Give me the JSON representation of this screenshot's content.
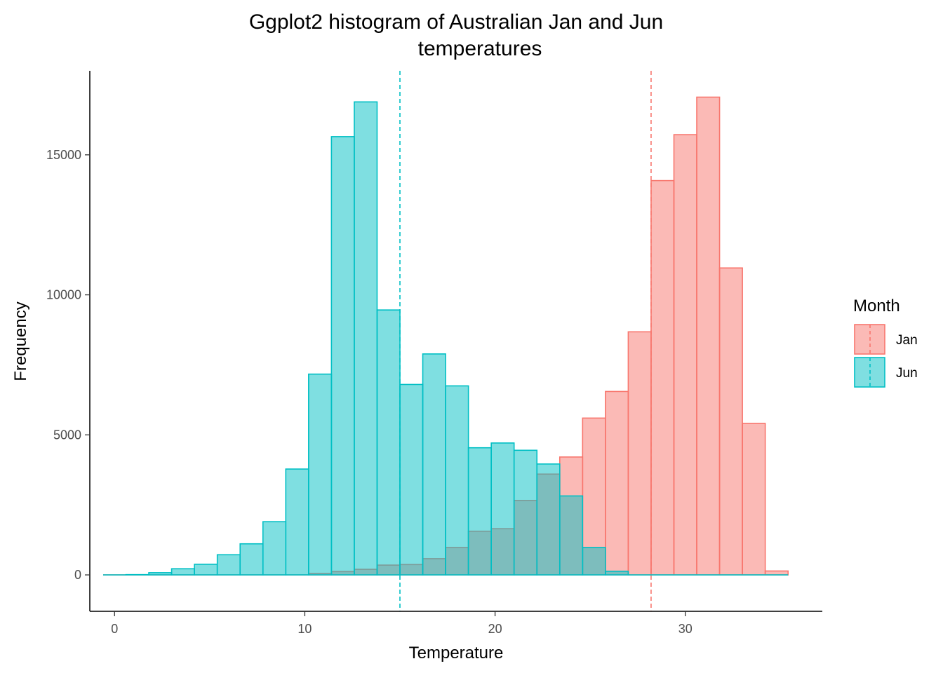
{
  "chart_data": {
    "type": "bar",
    "title_lines": [
      "Ggplot2 histogram of Australian Jan and Jun",
      "temperatures"
    ],
    "xlabel": "Temperature",
    "ylabel": "Frequency",
    "xlim": [
      -1.3,
      37.2
    ],
    "ylim": [
      -1300,
      18000
    ],
    "x_ticks": [
      0,
      10,
      20,
      30
    ],
    "x_tick_labels": [
      "0",
      "10",
      "20",
      "30"
    ],
    "y_ticks": [
      0,
      5000,
      10000,
      15000
    ],
    "y_tick_labels": [
      "0",
      "5000",
      "10000",
      "15000"
    ],
    "bins": [
      [
        -0.6,
        0.6
      ],
      [
        0.6,
        1.8
      ],
      [
        1.8,
        3.0
      ],
      [
        3.0,
        4.2
      ],
      [
        4.2,
        5.4
      ],
      [
        5.4,
        6.6
      ],
      [
        6.6,
        7.8
      ],
      [
        7.8,
        9.0
      ],
      [
        9.0,
        10.2
      ],
      [
        10.2,
        11.4
      ],
      [
        11.4,
        12.6
      ],
      [
        12.6,
        13.8
      ],
      [
        13.8,
        15.0
      ],
      [
        15.0,
        16.2
      ],
      [
        16.2,
        17.4
      ],
      [
        17.4,
        18.6
      ],
      [
        18.6,
        19.8
      ],
      [
        19.8,
        21.0
      ],
      [
        21.0,
        22.2
      ],
      [
        22.2,
        23.4
      ],
      [
        23.4,
        24.6
      ],
      [
        24.6,
        25.8
      ],
      [
        25.8,
        27.0
      ],
      [
        27.0,
        28.2
      ],
      [
        28.2,
        29.4
      ],
      [
        29.4,
        30.6
      ],
      [
        30.6,
        31.8
      ],
      [
        31.8,
        33.0
      ],
      [
        33.0,
        34.2
      ],
      [
        34.2,
        35.4
      ]
    ],
    "series": [
      {
        "name": "Jan",
        "color": "#F8766D",
        "fill": "#F8766D",
        "fill_opacity": 0.5,
        "mean_line": 28.2,
        "values": [
          0,
          0,
          0,
          0,
          0,
          0,
          0,
          0,
          0,
          50,
          120,
          200,
          350,
          370,
          580,
          980,
          1560,
          1650,
          2660,
          3600,
          4210,
          5600,
          6550,
          8680,
          14080,
          15720,
          17060,
          10960,
          5410,
          140
        ]
      },
      {
        "name": "Jun",
        "color": "#00BFC4",
        "fill": "#00BFC4",
        "fill_opacity": 0.5,
        "mean_line": 15.0,
        "values": [
          0,
          10,
          80,
          220,
          380,
          720,
          1110,
          1900,
          3780,
          7170,
          15650,
          16890,
          9460,
          6800,
          7890,
          6750,
          4540,
          4710,
          4450,
          3960,
          2820,
          980,
          130,
          0,
          0,
          0,
          0,
          0,
          0,
          0
        ]
      }
    ],
    "legend": {
      "title": "Month",
      "placement": "right",
      "entries": [
        "Jan",
        "Jun"
      ]
    },
    "grid": false
  }
}
